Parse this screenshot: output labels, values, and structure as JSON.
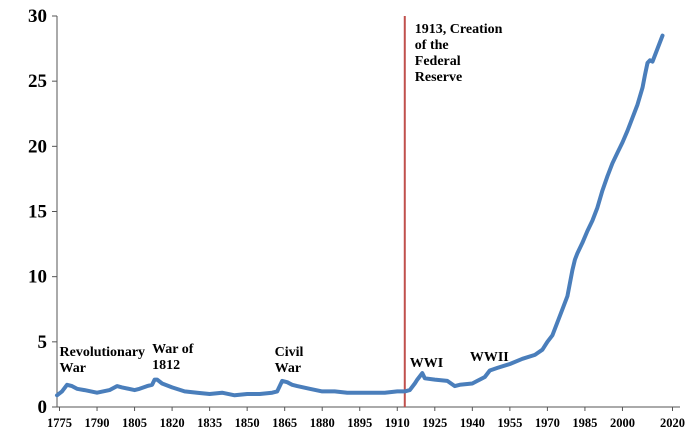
{
  "chart_data": {
    "type": "line",
    "title": "",
    "xlabel": "",
    "ylabel": "",
    "xlim": [
      1774,
      2023
    ],
    "ylim": [
      0,
      30
    ],
    "y_ticks": [
      "0",
      "5",
      "10",
      "15",
      "20",
      "25",
      "30"
    ],
    "x_ticks": [
      "1775",
      "1790",
      "1805",
      "1820",
      "1835",
      "1850",
      "1865",
      "1880",
      "1895",
      "1910",
      "1925",
      "1940",
      "1955",
      "1970",
      "1985",
      "2000",
      "2020"
    ],
    "grid": false,
    "legend": false,
    "line_color": "#4a7ebb",
    "event_line_color": "#c0504d",
    "event_line_year": 1913,
    "series": [
      {
        "x": [
          1774,
          1776,
          1778,
          1780,
          1782,
          1785,
          1790,
          1795,
          1798,
          1800,
          1805,
          1807,
          1810,
          1812,
          1813,
          1814,
          1816,
          1820,
          1825,
          1830,
          1835,
          1840,
          1845,
          1850,
          1855,
          1860,
          1862,
          1864,
          1866,
          1868,
          1870,
          1875,
          1880,
          1885,
          1890,
          1895,
          1900,
          1905,
          1910,
          1913,
          1915,
          1917,
          1918,
          1920,
          1921,
          1925,
          1930,
          1933,
          1935,
          1940,
          1942,
          1945,
          1947,
          1950,
          1955,
          1960,
          1965,
          1968,
          1970,
          1972,
          1974,
          1976,
          1978,
          1980,
          1981,
          1982,
          1984,
          1986,
          1988,
          1990,
          1992,
          1994,
          1996,
          1998,
          2000,
          2002,
          2004,
          2006,
          2008,
          2009,
          2010,
          2011,
          2012,
          2014,
          2016
        ],
        "y": [
          0.9,
          1.2,
          1.7,
          1.6,
          1.4,
          1.3,
          1.1,
          1.3,
          1.6,
          1.5,
          1.3,
          1.4,
          1.6,
          1.7,
          2.1,
          2.1,
          1.8,
          1.5,
          1.2,
          1.1,
          1.0,
          1.1,
          0.9,
          1.0,
          1.0,
          1.1,
          1.2,
          2.0,
          1.9,
          1.7,
          1.6,
          1.4,
          1.2,
          1.2,
          1.1,
          1.1,
          1.1,
          1.1,
          1.2,
          1.2,
          1.3,
          1.8,
          2.1,
          2.6,
          2.2,
          2.1,
          2.0,
          1.6,
          1.7,
          1.8,
          2.0,
          2.3,
          2.8,
          3.0,
          3.3,
          3.7,
          4.0,
          4.4,
          5.0,
          5.5,
          6.5,
          7.5,
          8.5,
          10.5,
          11.3,
          11.8,
          12.6,
          13.5,
          14.3,
          15.3,
          16.6,
          17.7,
          18.7,
          19.5,
          20.3,
          21.2,
          22.2,
          23.2,
          24.5,
          25.5,
          26.4,
          26.6,
          26.5,
          27.5,
          28.5
        ]
      }
    ],
    "annotations": [
      {
        "lines": [
          "Revolutionary",
          "War"
        ],
        "year": 1775
      },
      {
        "lines": [
          "War of",
          "1812"
        ],
        "year": 1812
      },
      {
        "lines": [
          "Civil",
          "War"
        ],
        "year": 1861
      },
      {
        "lines": [
          "WWI"
        ],
        "year": 1915
      },
      {
        "lines": [
          "WWII"
        ],
        "year": 1939
      },
      {
        "lines": [
          "1913, Creation",
          "of the",
          "Federal",
          "Reserve"
        ],
        "year": 1917
      }
    ]
  }
}
